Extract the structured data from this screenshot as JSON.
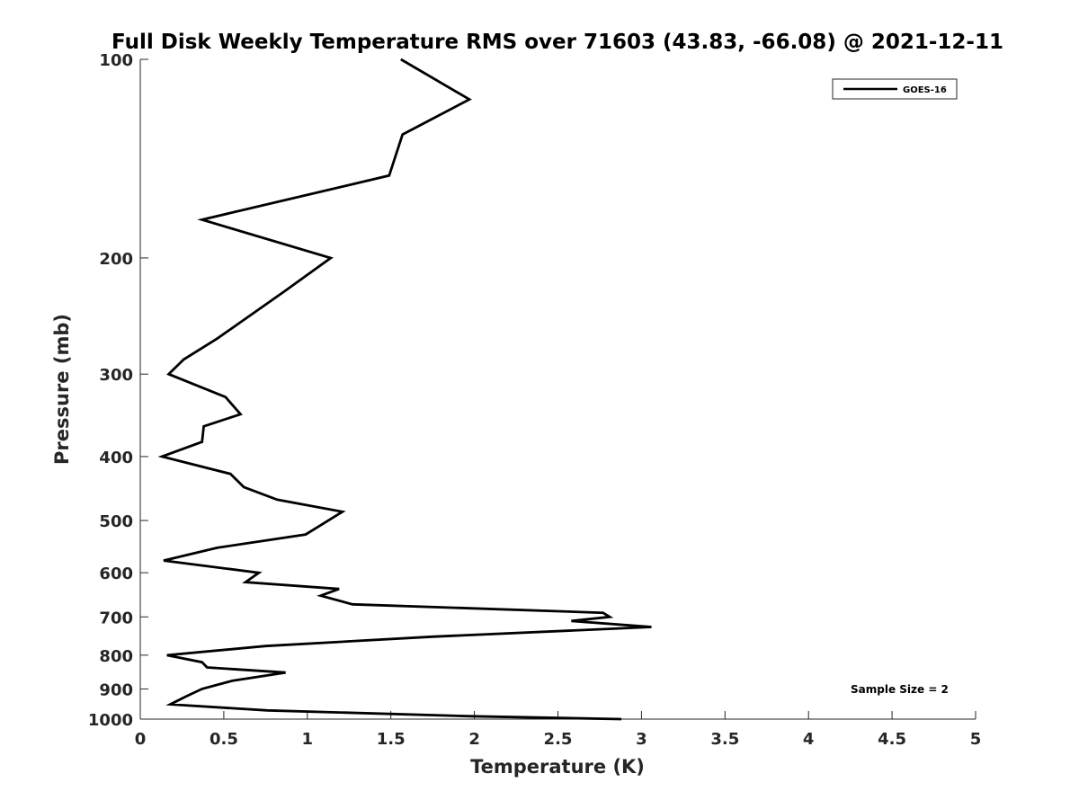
{
  "chart_data": {
    "type": "line",
    "title": "Full Disk Weekly Temperature RMS over 71603 (43.83, -66.08) @ 2021-12-11",
    "xlabel": "Temperature (K)",
    "ylabel": "Pressure (mb)",
    "xlim": [
      0,
      5
    ],
    "ylim": [
      100,
      1000
    ],
    "y_scale": "log",
    "y_reversed": true,
    "grid": false,
    "legend_placement": "top-right",
    "x_ticks": [
      "0",
      "0.5",
      "1",
      "1.5",
      "2",
      "2.5",
      "3",
      "3.5",
      "4",
      "4.5",
      "5"
    ],
    "y_ticks": [
      "100",
      "200",
      "300",
      "400",
      "500",
      "600",
      "700",
      "800",
      "900",
      "1000"
    ],
    "annotation": "Sample Size = 2",
    "series": [
      {
        "name": "GOES-16",
        "color": "#000000",
        "x": [
          1.56,
          1.97,
          1.57,
          1.49,
          0.37,
          1.14,
          0.86,
          0.46,
          0.26,
          0.17,
          0.51,
          0.6,
          0.38,
          0.37,
          0.13,
          0.54,
          0.62,
          0.82,
          1.21,
          1.07,
          0.99,
          0.46,
          0.14,
          0.71,
          0.63,
          1.19,
          1.08,
          1.27,
          2.77,
          2.81,
          2.58,
          3.06,
          1.75,
          0.75,
          0.16,
          0.37,
          0.4,
          0.87,
          0.55,
          0.37,
          0.27,
          0.18,
          0.76,
          1.98,
          2.88
        ],
        "y": [
          100,
          115,
          130,
          150,
          175,
          200,
          225,
          265,
          285,
          300,
          325,
          345,
          360,
          380,
          400,
          425,
          445,
          465,
          485,
          510,
          525,
          550,
          575,
          600,
          620,
          635,
          650,
          670,
          690,
          700,
          710,
          725,
          750,
          775,
          800,
          820,
          835,
          850,
          875,
          900,
          925,
          950,
          970,
          990,
          1000
        ]
      }
    ]
  }
}
